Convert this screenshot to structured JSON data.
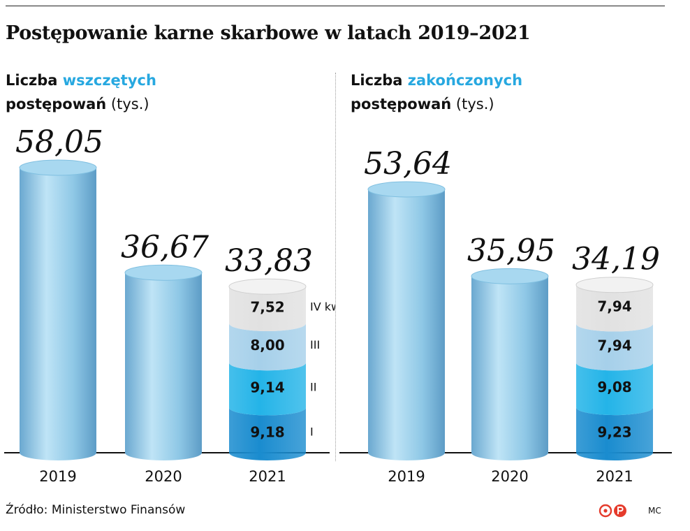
{
  "title": "Postępowanie karne skarbowe w latach 2019–2021",
  "colors": {
    "accent": "#27a8e0",
    "cylinder_side": "#8cc6e6",
    "cylinder_top": "#a8d8f0",
    "q1": "#1a8ccf",
    "q2": "#24b4e8",
    "q3": "#a6d0ea",
    "q4": "#e1e1e1"
  },
  "source_label": "Źródło: Ministerstwo Finansów",
  "credit": "MC",
  "logo_icon": "cp-logo-icon",
  "chart_data": [
    {
      "type": "bar",
      "title_parts": {
        "pre": "Liczba ",
        "highlight": "wszczętych",
        "line2": "postępowań",
        "unit": "(tys.)"
      },
      "categories": [
        "2019",
        "2020",
        "2021"
      ],
      "values": [
        58.05,
        36.67,
        33.83
      ],
      "value_labels": [
        "58,05",
        "36,67",
        "33,83"
      ],
      "quarter_labels": [
        "I",
        "II",
        "III",
        "IV kw."
      ],
      "stack_2021": [
        9.18,
        9.14,
        8.0,
        7.52
      ],
      "stack_2021_labels": [
        "9,18",
        "9,14",
        "8,00",
        "7,52"
      ],
      "ylim": [
        0,
        58.05
      ]
    },
    {
      "type": "bar",
      "title_parts": {
        "pre": "Liczba ",
        "highlight": "zakończonych",
        "line2": "postępowań",
        "unit": "(tys.)"
      },
      "categories": [
        "2019",
        "2020",
        "2021"
      ],
      "values": [
        53.64,
        35.95,
        34.19
      ],
      "value_labels": [
        "53,64",
        "35,95",
        "34,19"
      ],
      "quarter_labels": [],
      "stack_2021": [
        9.23,
        9.08,
        7.94,
        7.94
      ],
      "stack_2021_labels": [
        "9,23",
        "9,08",
        "7,94",
        "7,94"
      ],
      "ylim": [
        0,
        58.05
      ]
    }
  ]
}
